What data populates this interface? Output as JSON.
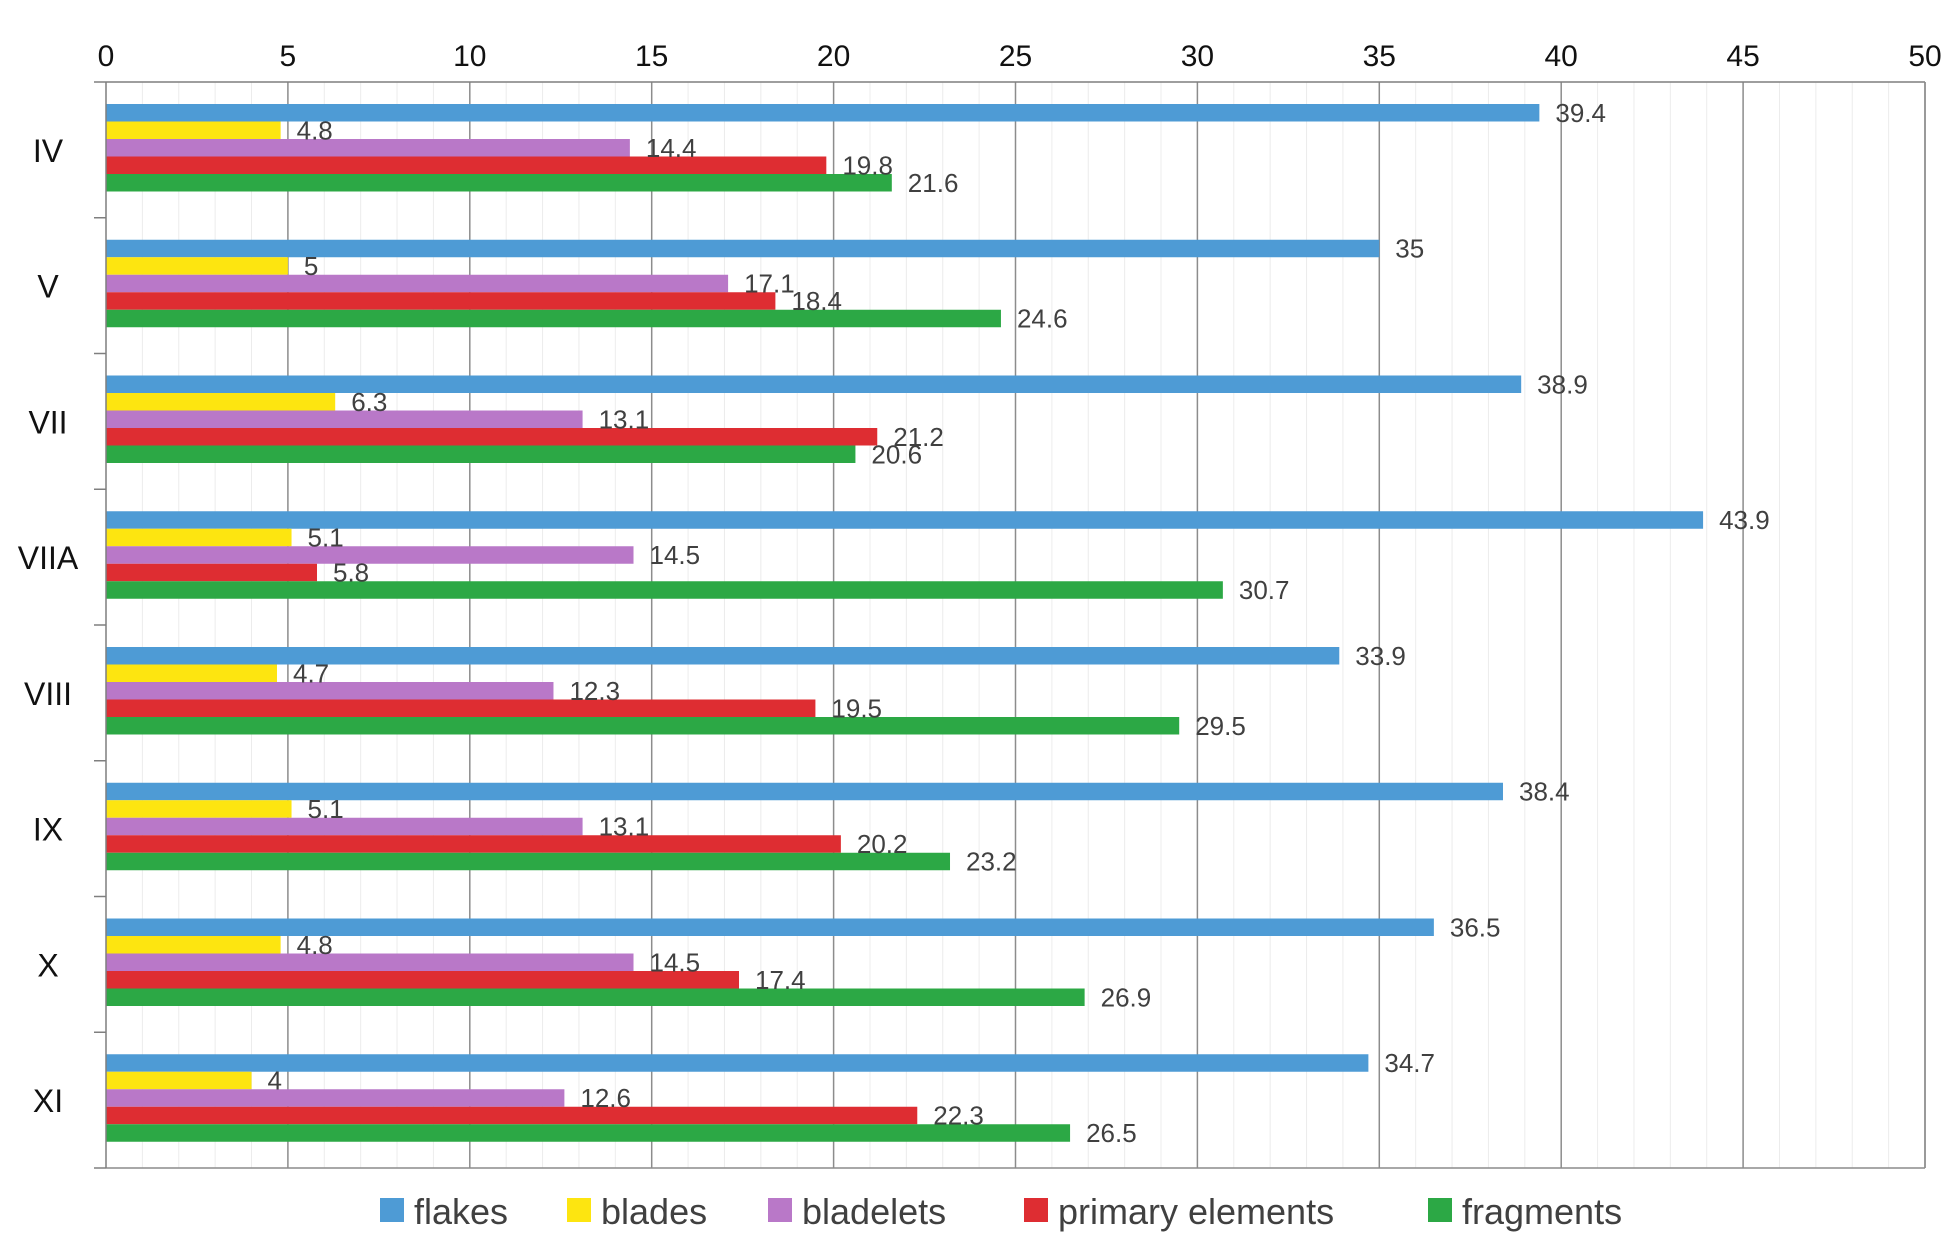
{
  "chart_data": {
    "type": "bar",
    "orientation": "horizontal",
    "title": "",
    "xlabel": "",
    "ylabel": "",
    "xlim": [
      0,
      50
    ],
    "x_ticks": [
      "0",
      "5",
      "10",
      "15",
      "20",
      "25",
      "30",
      "35",
      "40",
      "45",
      "50"
    ],
    "x_axis_position": "top",
    "grid": true,
    "legend_position": "bottom",
    "categories": [
      "IV",
      "V",
      "VII",
      "VIIA",
      "VIII",
      "IX",
      "X",
      "XI"
    ],
    "series": [
      {
        "name": "flakes",
        "color": "#4e9bd5",
        "values": [
          39.4,
          35,
          38.9,
          43.9,
          33.9,
          38.4,
          36.5,
          34.7
        ],
        "labels": [
          "39.4",
          "35",
          "38.9",
          "43.9",
          "33.9",
          "38.4",
          "36.5",
          "34.7"
        ]
      },
      {
        "name": "blades",
        "color": "#fde510",
        "values": [
          4.8,
          5,
          6.3,
          5.1,
          4.7,
          5.1,
          4.8,
          4
        ],
        "labels": [
          "4.8",
          "5",
          "6.3",
          "5.1",
          "4.7",
          "5.1",
          "4.8",
          "4"
        ]
      },
      {
        "name": "bladelets",
        "color": "#b978c8",
        "values": [
          14.4,
          17.1,
          13.1,
          14.5,
          12.3,
          13.1,
          14.5,
          12.6
        ],
        "labels": [
          "14.4",
          "17.1",
          "13.1",
          "14.5",
          "12.3",
          "13.1",
          "14.5",
          "12.6"
        ]
      },
      {
        "name": "primary elements",
        "color": "#de2d32",
        "values": [
          19.8,
          18.4,
          21.2,
          5.8,
          19.5,
          20.2,
          17.4,
          22.3
        ],
        "labels": [
          "19.8",
          "18.4",
          "21.2",
          "5.8",
          "19.5",
          "20.2",
          "17.4",
          "22.3"
        ]
      },
      {
        "name": "fragments",
        "color": "#2ca845",
        "values": [
          21.6,
          24.6,
          20.6,
          30.7,
          29.5,
          23.2,
          26.9,
          26.5
        ],
        "labels": [
          "21.6",
          "24.6",
          "20.6",
          "30.7",
          "29.5",
          "23.2",
          "26.9",
          "26.5"
        ]
      }
    ]
  }
}
